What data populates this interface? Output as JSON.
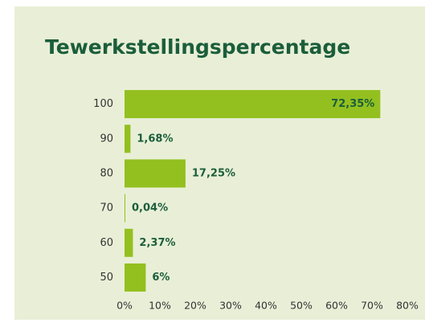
{
  "chart_data": {
    "type": "barh",
    "title": "Tewerkstellingspercentage",
    "categories": [
      "100",
      "90",
      "80",
      "70",
      "60",
      "50"
    ],
    "values": [
      72.35,
      1.68,
      17.25,
      0.04,
      2.37,
      6
    ],
    "value_labels": [
      "72,35%",
      "1,68%",
      "17,25%",
      "0,04%",
      "2,37%",
      "6%"
    ],
    "color": "#93c01f",
    "xlim": [
      0,
      80
    ],
    "xticks": [
      {
        "value": 0,
        "label": "0%"
      },
      {
        "value": 10,
        "label": "10%"
      },
      {
        "value": 20,
        "label": "20%"
      },
      {
        "value": 30,
        "label": "30%"
      },
      {
        "value": 40,
        "label": "40%"
      },
      {
        "value": 50,
        "label": "50%"
      },
      {
        "value": 60,
        "label": "60%"
      },
      {
        "value": 70,
        "label": "70%"
      },
      {
        "value": 80,
        "label": "80%"
      }
    ],
    "grid": false
  }
}
